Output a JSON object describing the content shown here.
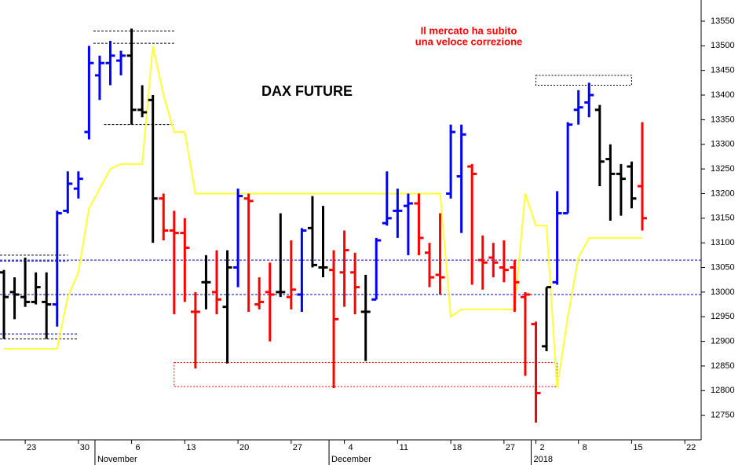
{
  "chart_data": {
    "type": "ohlc",
    "title": "DAX FUTURE",
    "annotation": [
      "Il mercato ha subito",
      "una veloce correzione"
    ],
    "categories": [
      null,
      null,
      "23",
      null,
      null,
      null,
      null,
      "30",
      null,
      null,
      null,
      null,
      "6",
      null,
      null,
      null,
      null,
      "13",
      null,
      null,
      null,
      null,
      "20",
      null,
      null,
      null,
      null,
      "27",
      null,
      null,
      null,
      null,
      "4",
      null,
      null,
      null,
      null,
      "11",
      null,
      null,
      null,
      null,
      "18",
      null,
      null,
      null,
      null,
      "27",
      null,
      null,
      "2",
      null,
      null,
      null,
      "8",
      null,
      null,
      null,
      null,
      "15",
      null,
      null,
      null,
      null,
      "22"
    ],
    "months": [
      {
        "label": "November",
        "index": 9
      },
      {
        "label": "December",
        "index": 31
      },
      {
        "label": "2018",
        "index": 50
      }
    ],
    "open": [
      13040,
      13000,
      12990,
      12980,
      12980,
      12975,
      13165,
      13210,
      13325,
      13440,
      13465,
      13470,
      13480,
      13370,
      13390,
      13190,
      13125,
      13120,
      12960,
      13020,
      13000,
      12970,
      13050,
      13190,
      12975,
      13000,
      13000,
      12990,
      12995,
      13130,
      13050,
      13045,
      13040,
      13040,
      12960,
      12985,
      13140,
      13165,
      13175,
      13180,
      13080,
      13035,
      13200,
      13235,
      13255,
      13065,
      13070,
      13050,
      13050,
      12990,
      12935,
      12890,
      13020,
      13160,
      13370,
      13385,
      13370,
      13270,
      13240,
      13255,
      13215,
      null,
      null,
      null,
      null
    ],
    "high": [
      13045,
      13030,
      13070,
      13040,
      13040,
      13165,
      13245,
      13245,
      13500,
      13480,
      13510,
      13490,
      13535,
      13420,
      13400,
      13200,
      13165,
      13150,
      13000,
      13075,
      13085,
      13085,
      13210,
      13200,
      13030,
      13060,
      13160,
      13105,
      13130,
      13195,
      13175,
      13085,
      13125,
      13080,
      13035,
      13110,
      13245,
      13210,
      13200,
      13200,
      13100,
      13160,
      13340,
      13340,
      13260,
      13115,
      13100,
      13105,
      13065,
      13000,
      12940,
      13010,
      13205,
      13345,
      13410,
      13425,
      13380,
      13300,
      13260,
      13265,
      13345,
      null,
      null,
      null,
      null
    ],
    "low": [
      12905,
      12945,
      12970,
      12975,
      12905,
      12930,
      13160,
      13190,
      13310,
      13390,
      13420,
      13440,
      13340,
      13355,
      13100,
      13105,
      12955,
      12980,
      12845,
      12965,
      12955,
      12855,
      13010,
      12960,
      12965,
      12900,
      12990,
      12965,
      12960,
      13050,
      13030,
      12805,
      12970,
      12955,
      12860,
      12985,
      13135,
      13110,
      13075,
      13075,
      13010,
      12995,
      13190,
      13120,
      13015,
      13005,
      13030,
      13020,
      12960,
      12830,
      12735,
      12880,
      13015,
      13160,
      13340,
      13355,
      13215,
      13145,
      13155,
      13170,
      13125,
      null,
      null,
      null,
      null
    ],
    "close": [
      12990,
      12995,
      12980,
      13010,
      12975,
      13160,
      13220,
      13230,
      13465,
      13465,
      13480,
      13480,
      13370,
      13365,
      13190,
      13125,
      13120,
      13090,
      12960,
      13020,
      12985,
      13050,
      13195,
      13185,
      12980,
      12995,
      13000,
      13005,
      13125,
      13055,
      13050,
      12945,
      13085,
      13010,
      12960,
      13105,
      13150,
      13165,
      13180,
      13110,
      13030,
      13030,
      13325,
      13320,
      13240,
      13060,
      13060,
      13045,
      13020,
      12995,
      12795,
      13010,
      13160,
      13340,
      13375,
      13400,
      13265,
      13240,
      13230,
      13190,
      13150,
      null,
      null,
      null,
      null
    ],
    "bar_colors": [
      "#000000",
      "#000000",
      "#000000",
      "#000000",
      "#000000",
      "#0000ff",
      "#0000ff",
      "#0000ff",
      "#0000ff",
      "#0000ff",
      "#0000ff",
      "#0000ff",
      "#000000",
      "#000000",
      "#000000",
      "#ff0000",
      "#ff0000",
      "#ff0000",
      "#ff0000",
      "#000000",
      "#ff0000",
      "#000000",
      "#0000ff",
      "#ff0000",
      "#ff0000",
      "#ff0000",
      "#000000",
      "#ff0000",
      "#0000ff",
      "#000000",
      "#000000",
      "#ff0000",
      "#ff0000",
      "#ff0000",
      "#000000",
      "#0000ff",
      "#0000ff",
      "#0000ff",
      "#0000ff",
      "#ff0000",
      "#ff0000",
      "#ff0000",
      "#0000ff",
      "#0000ff",
      "#ff0000",
      "#ff0000",
      "#ff0000",
      "#ff0000",
      "#ff0000",
      "#ff0000",
      "#ff0000",
      "#000000",
      "#0000ff",
      "#0000ff",
      "#0000ff",
      "#0000ff",
      "#000000",
      "#000000",
      "#000000",
      "#000000",
      "#ff0000",
      null,
      null,
      null,
      null
    ],
    "trend": {
      "color": "#ffff33",
      "values": [
        12885,
        12885,
        12885,
        12885,
        12885,
        12885,
        12990,
        13040,
        13170,
        13210,
        13250,
        13260,
        13260,
        13260,
        13500,
        13400,
        13325,
        13325,
        13200,
        13200,
        13200,
        13200,
        13200,
        13200,
        13200,
        13200,
        13200,
        13200,
        13200,
        13200,
        13200,
        13200,
        13200,
        13200,
        13200,
        13200,
        13200,
        13200,
        13200,
        13200,
        13200,
        13200,
        12950,
        12965,
        12965,
        12965,
        12965,
        12965,
        12965,
        13200,
        13135,
        13135,
        12805,
        12950,
        13070,
        13110,
        13110,
        13110,
        13110,
        13110,
        13110,
        null,
        null,
        null,
        null
      ]
    },
    "levels": [
      {
        "value": 13065,
        "color": "#0000cc"
      },
      {
        "value": 12995,
        "color": "#0000cc"
      }
    ],
    "lines": [
      {
        "value": 13530,
        "from": 9,
        "to": 16,
        "color": "#000000"
      },
      {
        "value": 13505,
        "from": 9,
        "to": 16,
        "color": "#000000"
      },
      {
        "value": 13340,
        "from": 10,
        "to": 16,
        "color": "#000000"
      },
      {
        "value": 13075,
        "from": 0,
        "to": 6,
        "color": "#000000"
      },
      {
        "value": 13063,
        "from": 0,
        "to": 6,
        "color": "#0000cc"
      },
      {
        "value": 12915,
        "from": 0,
        "to": 7,
        "color": "#0000cc"
      },
      {
        "value": 12905,
        "from": 0,
        "to": 7,
        "color": "#000000"
      }
    ],
    "boxes": [
      {
        "high": 13440,
        "low": 13420,
        "from": 50,
        "to": 59,
        "color": "#000000"
      },
      {
        "high": 12857,
        "low": 12808,
        "from": 16,
        "to": 52,
        "color": "#ff0000"
      }
    ],
    "ylim": [
      12700,
      13593
    ],
    "yticks": [
      12750,
      12800,
      12850,
      12900,
      12950,
      13000,
      13050,
      13100,
      13150,
      13200,
      13250,
      13300,
      13350,
      13400,
      13450,
      13500,
      13550
    ]
  }
}
